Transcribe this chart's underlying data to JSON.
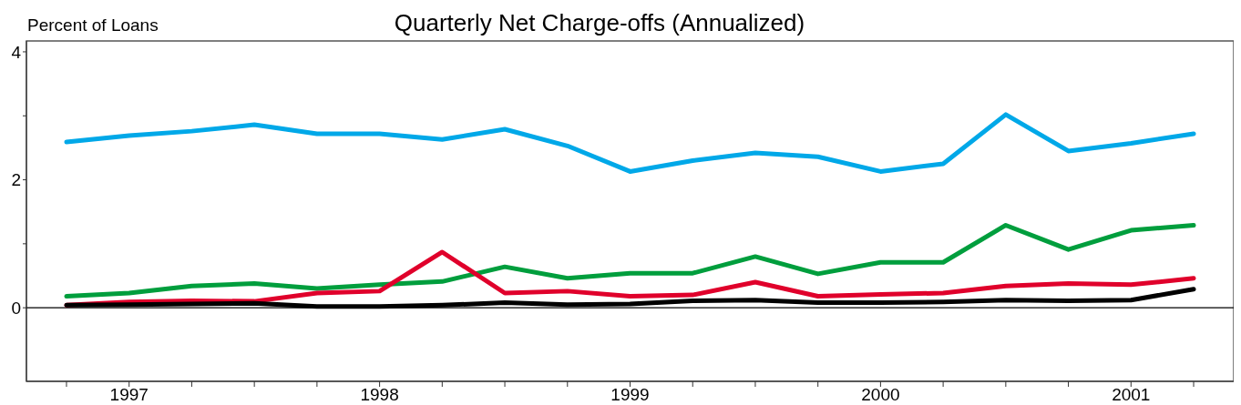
{
  "chart_data": {
    "type": "line",
    "title": "Quarterly Net Charge-offs (Annualized)",
    "ylabel": "Percent of Loans",
    "x": [
      1996.75,
      1997,
      1997.25,
      1997.5,
      1997.75,
      1998,
      1998.25,
      1998.5,
      1998.75,
      1999,
      1999.25,
      1999.5,
      1999.75,
      2000,
      2000.25,
      2000.5,
      2000.75,
      2001,
      2001.25
    ],
    "series": [
      {
        "color": "#00a8e8",
        "values": [
          2.59,
          2.69,
          2.76,
          2.86,
          2.72,
          2.72,
          2.63,
          2.79,
          2.53,
          2.13,
          2.3,
          2.42,
          2.36,
          2.13,
          2.25,
          3.02,
          2.45,
          2.57,
          2.72
        ]
      },
      {
        "color": "#009e3d",
        "values": [
          0.18,
          0.23,
          0.34,
          0.38,
          0.3,
          0.36,
          0.41,
          0.64,
          0.46,
          0.54,
          0.54,
          0.8,
          0.53,
          0.71,
          0.71,
          1.29,
          0.91,
          1.21,
          1.29
        ]
      },
      {
        "color": "#e0002b",
        "values": [
          0.04,
          0.09,
          0.11,
          0.1,
          0.23,
          0.26,
          0.87,
          0.23,
          0.26,
          0.18,
          0.2,
          0.4,
          0.18,
          0.21,
          0.23,
          0.34,
          0.38,
          0.36,
          0.46
        ]
      },
      {
        "color": "#000000",
        "values": [
          0.04,
          0.05,
          0.06,
          0.07,
          0.02,
          0.02,
          0.04,
          0.08,
          0.05,
          0.06,
          0.11,
          0.12,
          0.08,
          0.08,
          0.09,
          0.12,
          0.11,
          0.12,
          0.29
        ]
      }
    ],
    "xlim": [
      1996.59,
      2001.41
    ],
    "xticks": [
      {
        "value": 1996.75,
        "label": null
      },
      1997,
      {
        "value": 1997.25,
        "label": null
      },
      {
        "value": 1997.5,
        "label": null
      },
      {
        "value": 1997.75,
        "label": null
      },
      1998,
      {
        "value": 1998.25,
        "label": null
      },
      {
        "value": 1998.5,
        "label": null
      },
      {
        "value": 1998.75,
        "label": null
      },
      1999,
      {
        "value": 1999.25,
        "label": null
      },
      {
        "value": 1999.5,
        "label": null
      },
      {
        "value": 1999.75,
        "label": null
      },
      2000,
      {
        "value": 2000.25,
        "label": null
      },
      {
        "value": 2000.5,
        "label": null
      },
      {
        "value": 2000.75,
        "label": null
      },
      2001,
      {
        "value": 2001.25,
        "label": null
      }
    ],
    "ylim": [
      -1.15,
      4.17
    ],
    "yticks": [
      0,
      {
        "value": 1,
        "label": null
      },
      2,
      {
        "value": 3,
        "label": null
      },
      4
    ],
    "ref_lines": [
      {
        "axis": "y",
        "value": 0,
        "color": "#000000"
      }
    ],
    "grid": false,
    "legend": false,
    "marker": "none",
    "line_style": "solid"
  }
}
